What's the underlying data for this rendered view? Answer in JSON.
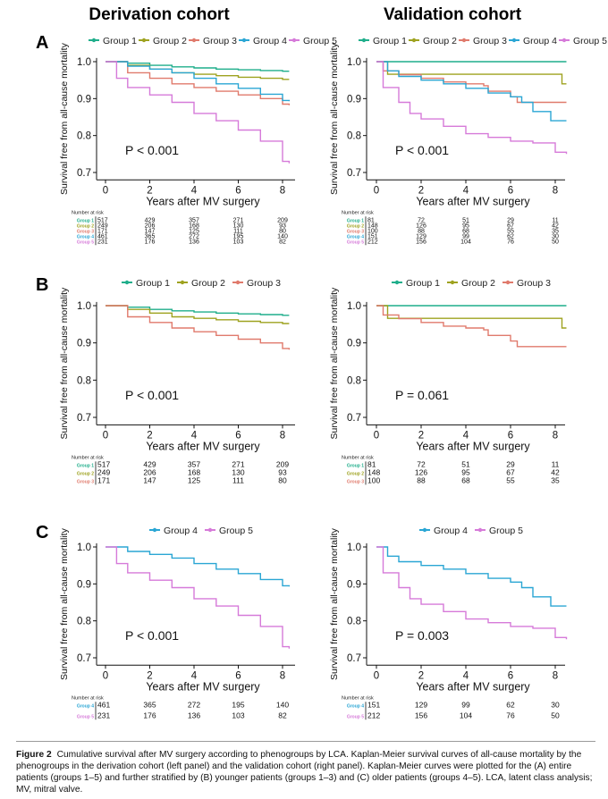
{
  "column_titles": [
    "Derivation cohort",
    "Validation cohort"
  ],
  "caption": {
    "figure_label": "Figure 2",
    "text": "Cumulative survival after MV surgery according to phenogroups by LCA. Kaplan-Meier survival curves of all-cause mortality by the phenogroups in the derivation cohort (left panel) and the validation cohort (right panel). Kaplan-Meier curves were plotted for the (A) entire patients (groups 1–5) and further stratified by (B) younger patients (groups 1–3) and (C) older patients (groups 4–5). LCA, latent class analysis; MV, mitral valve."
  },
  "colors": {
    "Group 1": "#1fae8b",
    "Group 2": "#9ea21f",
    "Group 3": "#e07a6c",
    "Group 4": "#2aa6d4",
    "Group 5": "#d67ad9"
  },
  "chart_data": [
    {
      "type": "line",
      "row_label": "A",
      "cohort": "Derivation cohort",
      "xlabel": "Years after MV surgery",
      "ylabel": "Survival free from all-cause mortality",
      "xlim": [
        0,
        8.5
      ],
      "ylim": [
        0.68,
        1.01
      ],
      "xticks": [
        0,
        2,
        4,
        6,
        8
      ],
      "yticks": [
        0.7,
        0.8,
        0.9,
        1.0
      ],
      "yticklabels": [
        "0.7",
        "0.8",
        "0.9",
        "1.0"
      ],
      "legend_position": "top",
      "annotation": "P < 0.001",
      "series": [
        {
          "name": "Group 1",
          "x": [
            0,
            1,
            2,
            3,
            4,
            5,
            6,
            7,
            8,
            8.3
          ],
          "y": [
            1.0,
            0.996,
            0.99,
            0.986,
            0.983,
            0.98,
            0.978,
            0.976,
            0.974,
            0.974
          ]
        },
        {
          "name": "Group 2",
          "x": [
            0,
            1,
            2,
            3,
            4,
            5,
            6,
            7,
            8,
            8.3
          ],
          "y": [
            1.0,
            0.99,
            0.98,
            0.97,
            0.966,
            0.962,
            0.958,
            0.955,
            0.952,
            0.952
          ]
        },
        {
          "name": "Group 3",
          "x": [
            0,
            1,
            2,
            3,
            4,
            5,
            6,
            7,
            8,
            8.3
          ],
          "y": [
            1.0,
            0.97,
            0.955,
            0.94,
            0.93,
            0.92,
            0.91,
            0.9,
            0.885,
            0.882
          ]
        },
        {
          "name": "Group 4",
          "x": [
            0,
            1,
            2,
            3,
            4,
            5,
            6,
            7,
            8,
            8.3
          ],
          "y": [
            1.0,
            0.988,
            0.98,
            0.97,
            0.955,
            0.94,
            0.928,
            0.912,
            0.895,
            0.893
          ]
        },
        {
          "name": "Group 5",
          "x": [
            0,
            0.5,
            1,
            2,
            3,
            4,
            5,
            6,
            7,
            8,
            8.3
          ],
          "y": [
            1.0,
            0.955,
            0.93,
            0.91,
            0.89,
            0.86,
            0.84,
            0.815,
            0.785,
            0.73,
            0.725
          ]
        }
      ],
      "risk_table": {
        "title": "Number at risk",
        "columns": [
          "0",
          "2",
          "4",
          "6",
          "8"
        ],
        "rows": [
          {
            "group": "Group 1",
            "values": [
              "517",
              "429",
              "357",
              "271",
              "209"
            ]
          },
          {
            "group": "Group 2",
            "values": [
              "249",
              "206",
              "168",
              "130",
              "93"
            ]
          },
          {
            "group": "Group 3",
            "values": [
              "171",
              "147",
              "125",
              "111",
              "80"
            ]
          },
          {
            "group": "Group 4",
            "values": [
              "461",
              "365",
              "272",
              "195",
              "140"
            ]
          },
          {
            "group": "Group 5",
            "values": [
              "231",
              "176",
              "136",
              "103",
              "82"
            ]
          }
        ]
      }
    },
    {
      "type": "line",
      "row_label": "",
      "cohort": "Validation cohort",
      "xlabel": "Years after MV surgery",
      "ylabel": "Survival free from all-cause mortality",
      "xlim": [
        0,
        8.5
      ],
      "ylim": [
        0.68,
        1.01
      ],
      "xticks": [
        0,
        2,
        4,
        6,
        8
      ],
      "yticks": [
        0.7,
        0.8,
        0.9,
        1.0
      ],
      "yticklabels": [
        "0.7",
        "0.8",
        "0.9",
        "1.0"
      ],
      "legend_position": "top",
      "annotation": "P < 0.001",
      "series": [
        {
          "name": "Group 1",
          "x": [
            0,
            8.5
          ],
          "y": [
            1.0,
            1.0
          ]
        },
        {
          "name": "Group 2",
          "x": [
            0,
            0.5,
            2,
            4,
            6,
            8,
            8.3,
            8.5
          ],
          "y": [
            1.0,
            0.966,
            0.966,
            0.966,
            0.966,
            0.966,
            0.94,
            0.94
          ]
        },
        {
          "name": "Group 3",
          "x": [
            0,
            0.3,
            1,
            2,
            3,
            4,
            4.8,
            5,
            6,
            6.3,
            8.5
          ],
          "y": [
            1.0,
            0.975,
            0.965,
            0.955,
            0.945,
            0.94,
            0.935,
            0.92,
            0.905,
            0.89,
            0.89
          ]
        },
        {
          "name": "Group 4",
          "x": [
            0,
            0.5,
            1,
            2,
            3,
            4,
            5,
            6,
            6.5,
            7,
            7.8,
            8.5
          ],
          "y": [
            1.0,
            0.975,
            0.96,
            0.95,
            0.94,
            0.928,
            0.915,
            0.905,
            0.89,
            0.865,
            0.84,
            0.84
          ]
        },
        {
          "name": "Group 5",
          "x": [
            0,
            0.3,
            1,
            1.5,
            2,
            3,
            4,
            5,
            6,
            7,
            8,
            8.5
          ],
          "y": [
            1.0,
            0.93,
            0.89,
            0.86,
            0.845,
            0.825,
            0.805,
            0.795,
            0.785,
            0.78,
            0.755,
            0.75
          ]
        }
      ],
      "risk_table": {
        "title": "Number at risk",
        "columns": [
          "0",
          "2",
          "4",
          "6",
          "8"
        ],
        "rows": [
          {
            "group": "Group 1",
            "values": [
              "81",
              "72",
              "51",
              "29",
              "11"
            ]
          },
          {
            "group": "Group 2",
            "values": [
              "148",
              "126",
              "95",
              "67",
              "42"
            ]
          },
          {
            "group": "Group 3",
            "values": [
              "100",
              "88",
              "68",
              "55",
              "35"
            ]
          },
          {
            "group": "Group 4",
            "values": [
              "151",
              "129",
              "99",
              "62",
              "30"
            ]
          },
          {
            "group": "Group 5",
            "values": [
              "212",
              "156",
              "104",
              "76",
              "50"
            ]
          }
        ]
      }
    },
    {
      "type": "line",
      "row_label": "B",
      "cohort": "Derivation cohort",
      "xlabel": "Years after MV surgery",
      "ylabel": "Survival free from all-cause mortality",
      "xlim": [
        0,
        8.5
      ],
      "ylim": [
        0.68,
        1.01
      ],
      "xticks": [
        0,
        2,
        4,
        6,
        8
      ],
      "yticks": [
        0.7,
        0.8,
        0.9,
        1.0
      ],
      "yticklabels": [
        "0.7",
        "0.8",
        "0.9",
        "1.0"
      ],
      "legend_position": "top",
      "annotation": "P < 0.001",
      "series": [
        {
          "name": "Group 1",
          "x": [
            0,
            1,
            2,
            3,
            4,
            5,
            6,
            7,
            8,
            8.3
          ],
          "y": [
            1.0,
            0.996,
            0.99,
            0.986,
            0.983,
            0.98,
            0.978,
            0.976,
            0.974,
            0.974
          ]
        },
        {
          "name": "Group 2",
          "x": [
            0,
            1,
            2,
            3,
            4,
            5,
            6,
            7,
            8,
            8.3
          ],
          "y": [
            1.0,
            0.99,
            0.98,
            0.97,
            0.966,
            0.962,
            0.958,
            0.955,
            0.952,
            0.952
          ]
        },
        {
          "name": "Group 3",
          "x": [
            0,
            1,
            2,
            3,
            4,
            5,
            6,
            7,
            8,
            8.3
          ],
          "y": [
            1.0,
            0.97,
            0.955,
            0.94,
            0.93,
            0.92,
            0.91,
            0.9,
            0.885,
            0.882
          ]
        }
      ],
      "risk_table": {
        "title": "Number at risk",
        "columns": [
          "0",
          "2",
          "4",
          "6",
          "8"
        ],
        "rows": [
          {
            "group": "Group 1",
            "values": [
              "517",
              "429",
              "357",
              "271",
              "209"
            ]
          },
          {
            "group": "Group 2",
            "values": [
              "249",
              "206",
              "168",
              "130",
              "93"
            ]
          },
          {
            "group": "Group 3",
            "values": [
              "171",
              "147",
              "125",
              "111",
              "80"
            ]
          }
        ]
      }
    },
    {
      "type": "line",
      "row_label": "",
      "cohort": "Validation cohort",
      "xlabel": "Years after MV surgery",
      "ylabel": "Survival free from all-cause mortality",
      "xlim": [
        0,
        8.5
      ],
      "ylim": [
        0.68,
        1.01
      ],
      "xticks": [
        0,
        2,
        4,
        6,
        8
      ],
      "yticks": [
        0.7,
        0.8,
        0.9,
        1.0
      ],
      "yticklabels": [
        "0.7",
        "0.8",
        "0.9",
        "1.0"
      ],
      "legend_position": "top",
      "annotation": "P = 0.061",
      "series": [
        {
          "name": "Group 1",
          "x": [
            0,
            8.5
          ],
          "y": [
            1.0,
            1.0
          ]
        },
        {
          "name": "Group 2",
          "x": [
            0,
            0.5,
            2,
            4,
            6,
            8,
            8.3,
            8.5
          ],
          "y": [
            1.0,
            0.966,
            0.966,
            0.966,
            0.966,
            0.966,
            0.94,
            0.94
          ]
        },
        {
          "name": "Group 3",
          "x": [
            0,
            0.3,
            1,
            2,
            3,
            4,
            4.8,
            5,
            6,
            6.3,
            8.5
          ],
          "y": [
            1.0,
            0.975,
            0.965,
            0.955,
            0.945,
            0.94,
            0.935,
            0.92,
            0.905,
            0.89,
            0.89
          ]
        }
      ],
      "risk_table": {
        "title": "Number at risk",
        "columns": [
          "0",
          "2",
          "4",
          "6",
          "8"
        ],
        "rows": [
          {
            "group": "Group 1",
            "values": [
              "81",
              "72",
              "51",
              "29",
              "11"
            ]
          },
          {
            "group": "Group 2",
            "values": [
              "148",
              "126",
              "95",
              "67",
              "42"
            ]
          },
          {
            "group": "Group 3",
            "values": [
              "100",
              "88",
              "68",
              "55",
              "35"
            ]
          }
        ]
      }
    },
    {
      "type": "line",
      "row_label": "C",
      "cohort": "Derivation cohort",
      "xlabel": "Years after MV surgery",
      "ylabel": "Survival free from all-cause mortality",
      "xlim": [
        0,
        8.5
      ],
      "ylim": [
        0.68,
        1.01
      ],
      "xticks": [
        0,
        2,
        4,
        6,
        8
      ],
      "yticks": [
        0.7,
        0.8,
        0.9,
        1.0
      ],
      "yticklabels": [
        "0.7",
        "0.8",
        "0.9",
        "1.0"
      ],
      "legend_position": "top",
      "annotation": "P < 0.001",
      "series": [
        {
          "name": "Group 4",
          "x": [
            0,
            1,
            2,
            3,
            4,
            5,
            6,
            7,
            8,
            8.3
          ],
          "y": [
            1.0,
            0.988,
            0.98,
            0.97,
            0.955,
            0.94,
            0.928,
            0.912,
            0.895,
            0.893
          ]
        },
        {
          "name": "Group 5",
          "x": [
            0,
            0.5,
            1,
            2,
            3,
            4,
            5,
            6,
            7,
            8,
            8.3
          ],
          "y": [
            1.0,
            0.955,
            0.93,
            0.91,
            0.89,
            0.86,
            0.84,
            0.815,
            0.785,
            0.73,
            0.725
          ]
        }
      ],
      "risk_table": {
        "title": "Number at risk",
        "columns": [
          "0",
          "2",
          "4",
          "6",
          "8"
        ],
        "rows": [
          {
            "group": "Group 4",
            "values": [
              "461",
              "365",
              "272",
              "195",
              "140"
            ]
          },
          {
            "group": "Group 5",
            "values": [
              "231",
              "176",
              "136",
              "103",
              "82"
            ]
          }
        ]
      }
    },
    {
      "type": "line",
      "row_label": "",
      "cohort": "Validation cohort",
      "xlabel": "Years after MV surgery",
      "ylabel": "Survival free from all-cause mortality",
      "xlim": [
        0,
        8.5
      ],
      "ylim": [
        0.68,
        1.01
      ],
      "xticks": [
        0,
        2,
        4,
        6,
        8
      ],
      "yticks": [
        0.7,
        0.8,
        0.9,
        1.0
      ],
      "yticklabels": [
        "0.7",
        "0.8",
        "0.9",
        "1.0"
      ],
      "legend_position": "top",
      "annotation": "P = 0.003",
      "series": [
        {
          "name": "Group 4",
          "x": [
            0,
            0.5,
            1,
            2,
            3,
            4,
            5,
            6,
            6.5,
            7,
            7.8,
            8.5
          ],
          "y": [
            1.0,
            0.975,
            0.96,
            0.95,
            0.94,
            0.928,
            0.915,
            0.905,
            0.89,
            0.865,
            0.84,
            0.84
          ]
        },
        {
          "name": "Group 5",
          "x": [
            0,
            0.3,
            1,
            1.5,
            2,
            3,
            4,
            5,
            6,
            7,
            8,
            8.5
          ],
          "y": [
            1.0,
            0.93,
            0.89,
            0.86,
            0.845,
            0.825,
            0.805,
            0.795,
            0.785,
            0.78,
            0.755,
            0.75
          ]
        }
      ],
      "risk_table": {
        "title": "Number at risk",
        "columns": [
          "0",
          "2",
          "4",
          "6",
          "8"
        ],
        "rows": [
          {
            "group": "Group 4",
            "values": [
              "151",
              "129",
              "99",
              "62",
              "30"
            ]
          },
          {
            "group": "Group 5",
            "values": [
              "212",
              "156",
              "104",
              "76",
              "50"
            ]
          }
        ]
      }
    }
  ]
}
